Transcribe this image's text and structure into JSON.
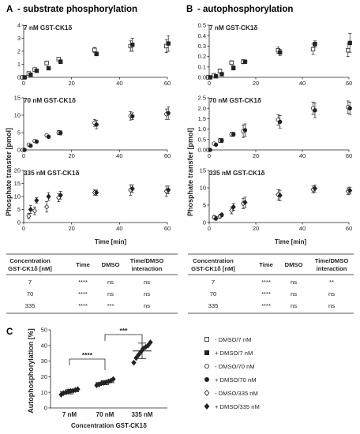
{
  "panels": {
    "a_label": "A",
    "a_title": "- substrate phosphorylation",
    "b_label": "B",
    "b_title": "- autophosphorylation",
    "c_label": "C"
  },
  "tables": [
    {
      "headers": [
        "Concentration GST-CK1δ [nM]",
        "Time",
        "DMSO",
        "Time/DMSO interaction"
      ],
      "rows": [
        [
          "7",
          "****",
          "ns",
          "ns"
        ],
        [
          "70",
          "****",
          "ns",
          "ns"
        ],
        [
          "335",
          "****",
          "***",
          "ns"
        ]
      ]
    },
    {
      "headers": [
        "Concentration GST-CK1δ [nM]",
        "Time",
        "DMSO",
        "Time/DMSO interaction"
      ],
      "rows": [
        [
          "7",
          "****",
          "ns",
          "**"
        ],
        [
          "70",
          "****",
          "ns",
          "ns"
        ],
        [
          "335",
          "****",
          "ns",
          "ns"
        ]
      ]
    }
  ],
  "legend": [
    {
      "label": "- DMSO/7 nM",
      "marker": "square-open"
    },
    {
      "label": "+ DMSO/7 nM",
      "marker": "square-filled"
    },
    {
      "label": "- DMSO/70 nM",
      "marker": "circle-open"
    },
    {
      "label": "+ DMSO/70 nM",
      "marker": "circle-filled"
    },
    {
      "label": "- DMSO/335 nM",
      "marker": "diamond-open"
    },
    {
      "label": "+ DMSO/335 nM",
      "marker": "diamond-filled"
    }
  ],
  "chart_data": [
    {
      "type": "scatter",
      "panel": "A",
      "subtitle": "7 nM GST-CK1δ",
      "xlim": [
        0,
        60
      ],
      "xticks": [
        0,
        20,
        40,
        60
      ],
      "ylim": [
        0,
        4
      ],
      "yticks": [
        0,
        1,
        2,
        3,
        4
      ],
      "series": [
        {
          "name": "- DMSO/7 nM",
          "marker": "square-open",
          "x": [
            0,
            2.5,
            5,
            10,
            15,
            30,
            45,
            60
          ],
          "y": [
            0,
            0.3,
            0.6,
            1.1,
            1.4,
            2.1,
            2.4,
            2.4
          ],
          "err": [
            0,
            0.05,
            0.1,
            0.15,
            0.1,
            0.2,
            0.4,
            0.5
          ]
        },
        {
          "name": "+ DMSO/7 nM",
          "marker": "square-filled",
          "x": [
            0,
            2.5,
            5,
            10,
            15,
            30,
            45,
            60
          ],
          "y": [
            0,
            0.2,
            0.5,
            0.7,
            1.2,
            1.8,
            2.5,
            2.6
          ],
          "err": [
            0,
            0.05,
            0.05,
            0.1,
            0.15,
            0.15,
            0.5,
            0.6
          ]
        }
      ]
    },
    {
      "type": "scatter",
      "panel": "A",
      "subtitle": "70 nM GST-CK1δ",
      "ylabel": "Phosphate transfer [pmol]",
      "xlim": [
        0,
        60
      ],
      "xticks": [
        0,
        20,
        40,
        60
      ],
      "ylim": [
        0,
        15
      ],
      "yticks": [
        0,
        5,
        10,
        15
      ],
      "series": [
        {
          "name": "- DMSO/70 nM",
          "marker": "circle-open",
          "x": [
            0,
            2.5,
            5,
            10,
            15,
            30,
            45,
            60
          ],
          "y": [
            0,
            1.5,
            2.6,
            4.2,
            5.0,
            7.8,
            9.8,
            10.3
          ],
          "err": [
            0,
            0.2,
            0.3,
            0.4,
            0.6,
            1.0,
            1.2,
            1.5
          ]
        },
        {
          "name": "+ DMSO/70 nM",
          "marker": "circle-filled",
          "x": [
            0,
            2.5,
            5,
            10,
            15,
            30,
            45,
            60
          ],
          "y": [
            0,
            1.2,
            2.4,
            3.8,
            4.9,
            7.3,
            9.7,
            10.6
          ],
          "err": [
            0,
            0.2,
            0.3,
            0.4,
            0.6,
            1.2,
            1.0,
            1.8
          ]
        }
      ]
    },
    {
      "type": "scatter",
      "panel": "A",
      "subtitle": "335 nM GST-CK1δ",
      "xlabel": "Time [min]",
      "xlim": [
        0,
        60
      ],
      "xticks": [
        0,
        20,
        40,
        60
      ],
      "ylim": [
        0,
        20
      ],
      "yticks": [
        0,
        5,
        10,
        15,
        20
      ],
      "series": [
        {
          "name": "- DMSO/335 nM",
          "marker": "diamond-open",
          "x": [
            2.5,
            5,
            10,
            15,
            30,
            45,
            60
          ],
          "y": [
            2.5,
            4.5,
            6.0,
            9.5,
            11.5,
            12.5,
            12.0
          ],
          "err": [
            1.0,
            1.5,
            2.0,
            1.5,
            1.0,
            2.0,
            2.0
          ]
        },
        {
          "name": "+ DMSO/335 nM",
          "marker": "diamond-filled",
          "x": [
            2.5,
            5,
            10,
            15,
            30,
            45,
            60
          ],
          "y": [
            5.0,
            8.5,
            10.0,
            10.5,
            11.5,
            13.0,
            12.5
          ],
          "err": [
            1.5,
            1.0,
            1.5,
            1.5,
            1.0,
            1.5,
            1.5
          ]
        }
      ]
    },
    {
      "type": "scatter",
      "panel": "B",
      "subtitle": "7 nM GST-CK1δ",
      "xlim": [
        0,
        60
      ],
      "xticks": [
        0,
        20,
        40,
        60
      ],
      "ylim": [
        0,
        0.5
      ],
      "yticks": [
        0.0,
        0.1,
        0.2,
        0.3,
        0.4,
        0.5
      ],
      "series": [
        {
          "name": "- DMSO/7 nM",
          "marker": "square-open",
          "x": [
            0,
            2.5,
            5,
            10,
            15,
            30,
            45,
            60
          ],
          "y": [
            0,
            0.02,
            0.06,
            0.14,
            0.15,
            0.26,
            0.27,
            0.26
          ],
          "err": [
            0,
            0.01,
            0.02,
            0.02,
            0.02,
            0.03,
            0.05,
            0.06
          ]
        },
        {
          "name": "+ DMSO/7 nM",
          "marker": "square-filled",
          "x": [
            0,
            2.5,
            5,
            10,
            15,
            30,
            45,
            60
          ],
          "y": [
            0,
            0.01,
            0.03,
            0.09,
            0.15,
            0.24,
            0.32,
            0.33
          ],
          "err": [
            0,
            0.01,
            0.01,
            0.02,
            0.01,
            0.03,
            0.03,
            0.09
          ]
        }
      ]
    },
    {
      "type": "scatter",
      "panel": "B",
      "subtitle": "70 nM GST-CK1δ",
      "ylabel": "Phosphate transfer [pmol]",
      "xlim": [
        0,
        60
      ],
      "xticks": [
        0,
        20,
        40,
        60
      ],
      "ylim": [
        0,
        2.5
      ],
      "yticks": [
        0.0,
        0.5,
        1.0,
        1.5,
        2.0,
        2.5
      ],
      "series": [
        {
          "name": "- DMSO/70 nM",
          "marker": "circle-open",
          "x": [
            0,
            2.5,
            5,
            10,
            15,
            30,
            45,
            60
          ],
          "y": [
            0,
            0.3,
            0.45,
            0.75,
            0.9,
            1.45,
            2.0,
            2.05
          ],
          "err": [
            0,
            0.05,
            0.1,
            0.1,
            0.3,
            0.25,
            0.3,
            0.3
          ]
        },
        {
          "name": "+ DMSO/70 nM",
          "marker": "circle-filled",
          "x": [
            0,
            2.5,
            5,
            10,
            15,
            30,
            45,
            60
          ],
          "y": [
            0,
            0.25,
            0.45,
            0.75,
            0.95,
            1.35,
            1.9,
            2.0
          ],
          "err": [
            0,
            0.05,
            0.1,
            0.1,
            0.3,
            0.3,
            0.35,
            0.3
          ]
        }
      ]
    },
    {
      "type": "scatter",
      "panel": "B",
      "subtitle": "335 nM GST-CK1δ",
      "xlabel": "Time [min]",
      "xlim": [
        0,
        60
      ],
      "xticks": [
        0,
        20,
        40,
        60
      ],
      "ylim": [
        0,
        15
      ],
      "yticks": [
        0,
        5,
        10,
        15
      ],
      "series": [
        {
          "name": "- DMSO/335 nM",
          "marker": "diamond-open",
          "x": [
            2.5,
            5,
            10,
            15,
            30,
            45,
            60
          ],
          "y": [
            1.5,
            1.8,
            3.5,
            5.5,
            8.0,
            9.5,
            9.0
          ],
          "err": [
            0.5,
            0.5,
            1.0,
            1.5,
            1.5,
            1.0,
            1.0
          ]
        },
        {
          "name": "+ DMSO/335 nM",
          "marker": "diamond-filled",
          "x": [
            2.5,
            5,
            10,
            15,
            30,
            45,
            60
          ],
          "y": [
            1.2,
            2.2,
            4.5,
            5.8,
            7.8,
            9.8,
            9.2
          ],
          "err": [
            0.5,
            0.5,
            1.0,
            1.5,
            1.5,
            1.0,
            1.0
          ]
        }
      ]
    },
    {
      "type": "scatter",
      "panel": "C",
      "ylabel": "Autophosphorylation [%]",
      "xlabel": "Concentration GST-CK1δ",
      "categories": [
        "7 nM",
        "70 nM",
        "335 nM"
      ],
      "ylim": [
        0,
        50
      ],
      "yticks": [
        0,
        10,
        20,
        30,
        40,
        50
      ],
      "groups": [
        {
          "category": "7 nM",
          "mean": 10.5,
          "sd": 1.5,
          "points": [
            8.5,
            9.5,
            10.0,
            10.5,
            10.8,
            11.0,
            11.5,
            12.0
          ]
        },
        {
          "category": "70 nM",
          "mean": 16.2,
          "sd": 1.3,
          "points": [
            14.5,
            15.0,
            15.8,
            16.0,
            16.5,
            17.0,
            17.5,
            18.5
          ]
        },
        {
          "category": "335 nM",
          "mean": 36.5,
          "sd": 5.0,
          "points": [
            29.0,
            32.0,
            34.0,
            36.0,
            38.0,
            39.0,
            40.0,
            42.0
          ]
        }
      ],
      "comparisons": [
        {
          "from": "7 nM",
          "to": "70 nM",
          "label": "****"
        },
        {
          "from": "70 nM",
          "to": "335 nM",
          "label": "***"
        }
      ]
    }
  ]
}
